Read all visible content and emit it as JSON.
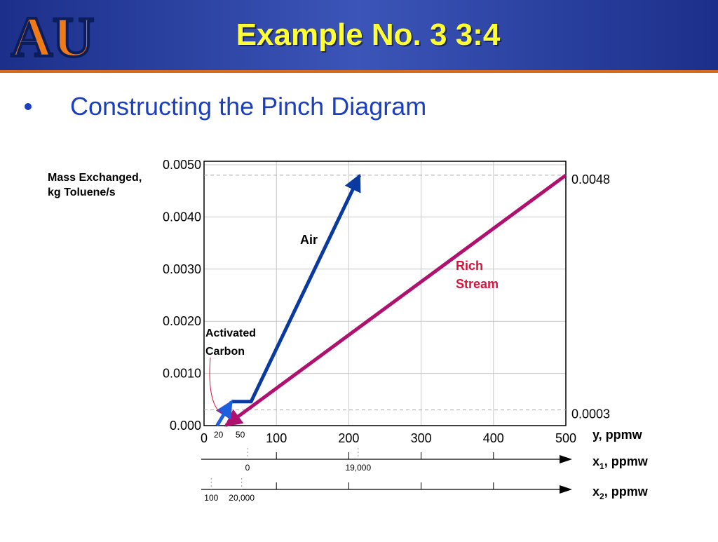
{
  "header": {
    "logo": "AU",
    "title": "Example No. 3  3:4"
  },
  "bullet": "Constructing the Pinch Diagram",
  "chart_data": {
    "type": "line",
    "ylabel": [
      "Mass Exchanged,",
      "kg Toluene/s"
    ],
    "xlabel": "y, ppmw",
    "xlim": [
      0,
      500
    ],
    "xticks": [
      0,
      100,
      200,
      300,
      400,
      500
    ],
    "xticks_minor": [
      20,
      50
    ],
    "ylim": [
      0,
      0.005
    ],
    "yticks": [
      {
        "value": 0,
        "label": "0.000"
      },
      {
        "value": 0.001,
        "label": "0.0010"
      },
      {
        "value": 0.002,
        "label": "0.0020"
      },
      {
        "value": 0.003,
        "label": "0.0030"
      },
      {
        "value": 0.004,
        "label": "0.0040"
      },
      {
        "value": 0.005,
        "label": "0.0050"
      }
    ],
    "grid": true,
    "series": [
      {
        "name": [
          "Rich",
          "Stream"
        ],
        "color": "#b0106e",
        "x": [
          500,
          30
        ],
        "values": [
          0.0048,
          0
        ]
      },
      {
        "name": [
          "Air"
        ],
        "color": "#0a3aa0",
        "x": [
          38,
          65,
          215
        ],
        "values": [
          0.00046,
          0.00046,
          0.0048
        ]
      },
      {
        "name": [
          "Activated",
          "Carbon"
        ],
        "color": "#1e5fe0",
        "x": [
          18,
          38
        ],
        "values": [
          0,
          0.00046
        ]
      }
    ],
    "hlines": [
      0.0048,
      0.0003
    ],
    "x1_axis": {
      "label": {
        "var": "x",
        "sub": "1",
        "unit": ", ppmw"
      },
      "ticks": [
        {
          "value": 60,
          "label": "0"
        },
        {
          "value": 213,
          "label": "19,000"
        }
      ]
    },
    "x2_axis": {
      "label": {
        "var": "x",
        "sub": "2",
        "unit": ", ppmw"
      },
      "ticks": [
        {
          "value": 10,
          "label": "100"
        },
        {
          "value": 52,
          "label": "20,000"
        }
      ]
    }
  }
}
